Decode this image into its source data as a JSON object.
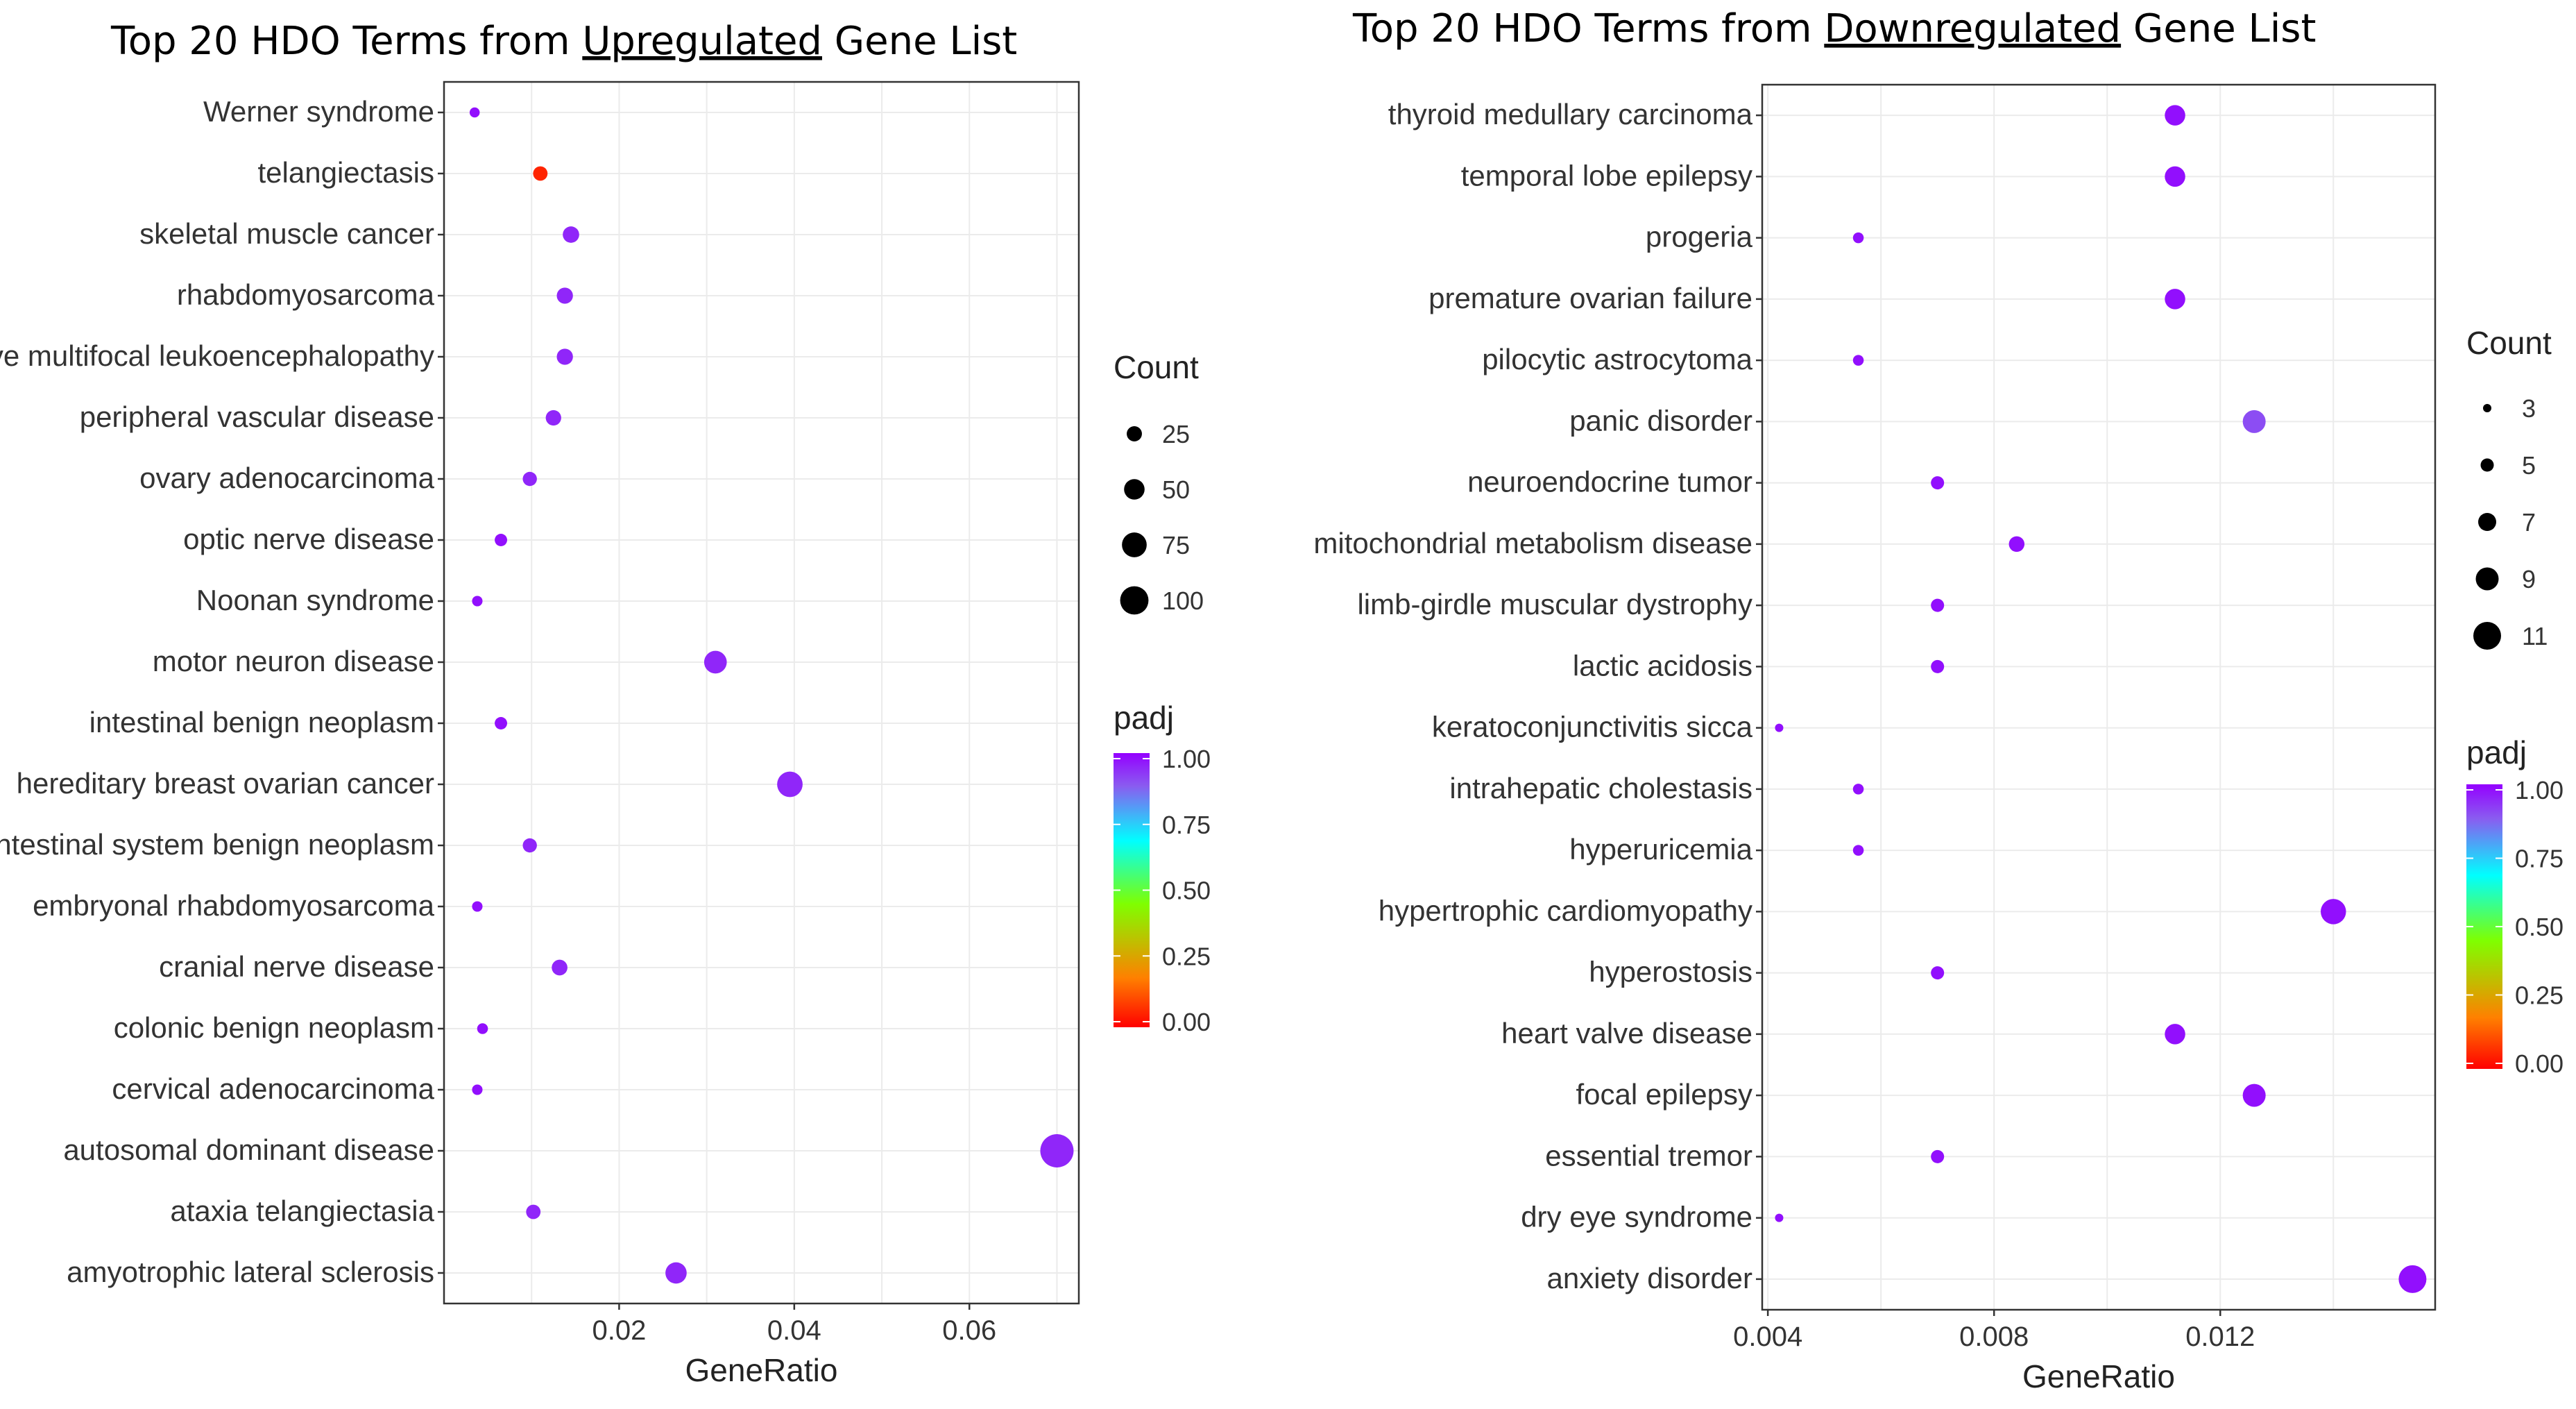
{
  "chart_data": [
    {
      "type": "scatter",
      "title_parts": [
        "Top 20 ",
        "HDO",
        " Terms from ",
        "Upregulated",
        " Gene List"
      ],
      "xlabel": "GeneRatio",
      "ylabel": "",
      "xlim": [
        0.0,
        0.0725
      ],
      "xticks": [
        0.02,
        0.04,
        0.06
      ],
      "xtick_labels": [
        "0.02",
        "0.04",
        "0.06"
      ],
      "terms": [
        {
          "term": "Werner syndrome",
          "gene_ratio": 0.0035,
          "count": 8,
          "padj": 0.98
        },
        {
          "term": "telangiectasis",
          "gene_ratio": 0.011,
          "count": 22,
          "padj": 0.05
        },
        {
          "term": "skeletal muscle cancer",
          "gene_ratio": 0.0145,
          "count": 30,
          "padj": 0.95
        },
        {
          "term": "rhabdomyosarcoma",
          "gene_ratio": 0.0138,
          "count": 29,
          "padj": 0.95
        },
        {
          "term": "progressive multifocal leukoencephalopathy",
          "gene_ratio": 0.0138,
          "count": 29,
          "padj": 0.95
        },
        {
          "term": "peripheral vascular disease",
          "gene_ratio": 0.0125,
          "count": 26,
          "padj": 0.95
        },
        {
          "term": "ovary adenocarcinoma",
          "gene_ratio": 0.0098,
          "count": 21,
          "padj": 0.95
        },
        {
          "term": "optic nerve disease",
          "gene_ratio": 0.0065,
          "count": 15,
          "padj": 0.98
        },
        {
          "term": "Noonan syndrome",
          "gene_ratio": 0.0038,
          "count": 9,
          "padj": 0.98
        },
        {
          "term": "motor neuron disease",
          "gene_ratio": 0.031,
          "count": 62,
          "padj": 0.95
        },
        {
          "term": "intestinal benign neoplasm",
          "gene_ratio": 0.0065,
          "count": 15,
          "padj": 0.98
        },
        {
          "term": "hereditary breast ovarian cancer",
          "gene_ratio": 0.0395,
          "count": 80,
          "padj": 0.95
        },
        {
          "term": "gastrointestinal system benign neoplasm",
          "gene_ratio": 0.0098,
          "count": 21,
          "padj": 0.95
        },
        {
          "term": "embryonal rhabdomyosarcoma",
          "gene_ratio": 0.0038,
          "count": 9,
          "padj": 0.98
        },
        {
          "term": "cranial nerve disease",
          "gene_ratio": 0.0132,
          "count": 27,
          "padj": 0.95
        },
        {
          "term": "colonic benign neoplasm",
          "gene_ratio": 0.0044,
          "count": 10,
          "padj": 0.98
        },
        {
          "term": "cervical adenocarcinoma",
          "gene_ratio": 0.0038,
          "count": 9,
          "padj": 0.98
        },
        {
          "term": "autosomal dominant disease",
          "gene_ratio": 0.07,
          "count": 140,
          "padj": 0.95
        },
        {
          "term": "ataxia telangiectasia",
          "gene_ratio": 0.0102,
          "count": 22,
          "padj": 0.95
        },
        {
          "term": "amyotrophic lateral sclerosis",
          "gene_ratio": 0.0265,
          "count": 54,
          "padj": 0.95
        }
      ],
      "legend": {
        "size_title": "Count",
        "size_breaks": [
          25,
          50,
          75,
          100
        ],
        "color_title": "padj",
        "color_breaks": [
          "1.00",
          "0.75",
          "0.50",
          "0.25",
          "0.00"
        ],
        "size_range": [
          1,
          140
        ]
      }
    },
    {
      "type": "scatter",
      "title_parts": [
        "Top 20 HDO Terms from ",
        "Downregulated",
        " Gene List"
      ],
      "xlabel": "GeneRatio",
      "ylabel": "",
      "xlim": [
        0.0039,
        0.0158
      ],
      "xticks": [
        0.004,
        0.008,
        0.012
      ],
      "xtick_labels": [
        "0.004",
        "0.008",
        "0.012"
      ],
      "terms": [
        {
          "term": "thyroid medullary carcinoma",
          "gene_ratio": 0.0112,
          "count": 8,
          "padj": 0.98
        },
        {
          "term": "temporal lobe epilepsy",
          "gene_ratio": 0.0112,
          "count": 8,
          "padj": 0.98
        },
        {
          "term": "progeria",
          "gene_ratio": 0.0056,
          "count": 4,
          "padj": 0.98
        },
        {
          "term": "premature ovarian failure",
          "gene_ratio": 0.0112,
          "count": 8,
          "padj": 0.98
        },
        {
          "term": "pilocytic astrocytoma",
          "gene_ratio": 0.0056,
          "count": 4,
          "padj": 0.98
        },
        {
          "term": "panic disorder",
          "gene_ratio": 0.0126,
          "count": 9,
          "padj": 0.9
        },
        {
          "term": "neuroendocrine tumor",
          "gene_ratio": 0.007,
          "count": 5,
          "padj": 0.98
        },
        {
          "term": "mitochondrial metabolism disease",
          "gene_ratio": 0.0084,
          "count": 6,
          "padj": 0.98
        },
        {
          "term": "limb-girdle muscular dystrophy",
          "gene_ratio": 0.007,
          "count": 5,
          "padj": 0.98
        },
        {
          "term": "lactic acidosis",
          "gene_ratio": 0.007,
          "count": 5,
          "padj": 0.98
        },
        {
          "term": "keratoconjunctivitis sicca",
          "gene_ratio": 0.0042,
          "count": 3,
          "padj": 0.98
        },
        {
          "term": "intrahepatic cholestasis",
          "gene_ratio": 0.0056,
          "count": 4,
          "padj": 0.98
        },
        {
          "term": "hyperuricemia",
          "gene_ratio": 0.0056,
          "count": 4,
          "padj": 0.98
        },
        {
          "term": "hypertrophic cardiomyopathy",
          "gene_ratio": 0.014,
          "count": 10,
          "padj": 0.98
        },
        {
          "term": "hyperostosis",
          "gene_ratio": 0.007,
          "count": 5,
          "padj": 0.98
        },
        {
          "term": "heart valve disease",
          "gene_ratio": 0.0112,
          "count": 8,
          "padj": 0.98
        },
        {
          "term": "focal epilepsy",
          "gene_ratio": 0.0126,
          "count": 9,
          "padj": 0.98
        },
        {
          "term": "essential tremor",
          "gene_ratio": 0.007,
          "count": 5,
          "padj": 0.98
        },
        {
          "term": "dry eye syndrome",
          "gene_ratio": 0.0042,
          "count": 3,
          "padj": 0.98
        },
        {
          "term": "anxiety disorder",
          "gene_ratio": 0.0154,
          "count": 11,
          "padj": 0.98
        }
      ],
      "legend": {
        "size_title": "Count",
        "size_breaks": [
          3,
          5,
          7,
          9,
          11
        ],
        "color_title": "padj",
        "color_breaks": [
          "1.00",
          "0.75",
          "0.50",
          "0.25",
          "0.00"
        ],
        "size_range": [
          3,
          11
        ]
      }
    }
  ],
  "colors": {
    "gradient": [
      "#ff0000",
      "#ff8000",
      "#7fff00",
      "#00ffff",
      "#8a2be2",
      "#9400ff"
    ],
    "grid": "#ebebeb",
    "panel_border": "#333333"
  }
}
